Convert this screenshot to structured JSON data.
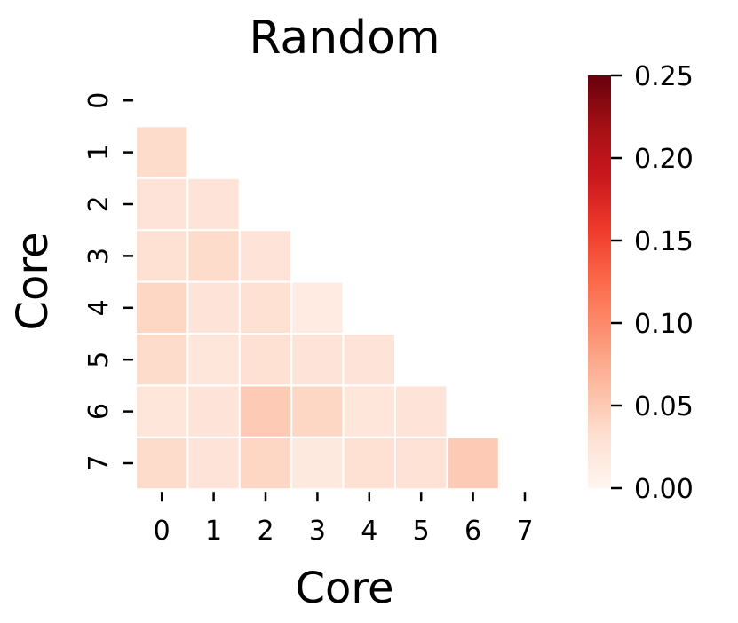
{
  "chart_data": {
    "type": "heatmap",
    "title": "Random",
    "xlabel": "Core",
    "ylabel": "Core",
    "x_categories": [
      "0",
      "1",
      "2",
      "3",
      "4",
      "5",
      "6",
      "7"
    ],
    "y_categories": [
      "0",
      "1",
      "2",
      "3",
      "4",
      "5",
      "6",
      "7"
    ],
    "mask": "upper triangle including diagonal",
    "cells": [
      {
        "row": 1,
        "col": 0,
        "value": 0.035
      },
      {
        "row": 2,
        "col": 0,
        "value": 0.025
      },
      {
        "row": 2,
        "col": 1,
        "value": 0.025
      },
      {
        "row": 3,
        "col": 0,
        "value": 0.03
      },
      {
        "row": 3,
        "col": 1,
        "value": 0.035
      },
      {
        "row": 3,
        "col": 2,
        "value": 0.025
      },
      {
        "row": 4,
        "col": 0,
        "value": 0.04
      },
      {
        "row": 4,
        "col": 1,
        "value": 0.025
      },
      {
        "row": 4,
        "col": 2,
        "value": 0.03
      },
      {
        "row": 4,
        "col": 3,
        "value": 0.015
      },
      {
        "row": 5,
        "col": 0,
        "value": 0.035
      },
      {
        "row": 5,
        "col": 1,
        "value": 0.022
      },
      {
        "row": 5,
        "col": 2,
        "value": 0.03
      },
      {
        "row": 5,
        "col": 3,
        "value": 0.025
      },
      {
        "row": 5,
        "col": 4,
        "value": 0.025
      },
      {
        "row": 6,
        "col": 0,
        "value": 0.022
      },
      {
        "row": 6,
        "col": 1,
        "value": 0.025
      },
      {
        "row": 6,
        "col": 2,
        "value": 0.05
      },
      {
        "row": 6,
        "col": 3,
        "value": 0.04
      },
      {
        "row": 6,
        "col": 4,
        "value": 0.022
      },
      {
        "row": 6,
        "col": 5,
        "value": 0.025
      },
      {
        "row": 7,
        "col": 0,
        "value": 0.035
      },
      {
        "row": 7,
        "col": 1,
        "value": 0.025
      },
      {
        "row": 7,
        "col": 2,
        "value": 0.04
      },
      {
        "row": 7,
        "col": 3,
        "value": 0.018
      },
      {
        "row": 7,
        "col": 4,
        "value": 0.03
      },
      {
        "row": 7,
        "col": 5,
        "value": 0.028
      },
      {
        "row": 7,
        "col": 6,
        "value": 0.05
      }
    ],
    "colorbar": {
      "colormap": "Reds",
      "range": [
        0.0,
        0.25
      ],
      "ticks": [
        "0.00",
        "0.05",
        "0.10",
        "0.15",
        "0.20",
        "0.25"
      ]
    },
    "colors": {
      "cell_border": "#ffffff",
      "colormap_low": "#fff5f0",
      "colormap_high": "#67000d"
    }
  }
}
